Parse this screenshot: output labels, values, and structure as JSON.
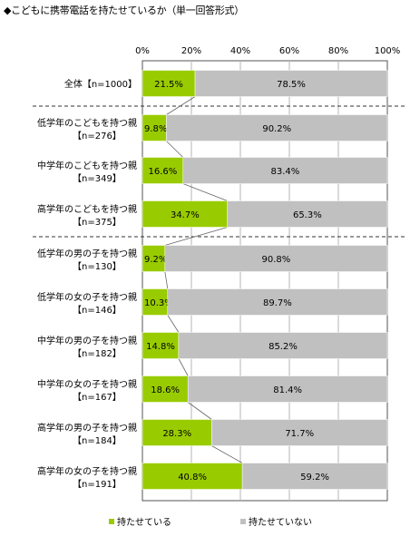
{
  "title": "◆こどもに携帯電話を持たせているか（単一回答形式）",
  "chart_data": {
    "type": "bar",
    "stacked": true,
    "orientation": "horizontal",
    "title": "◆こどもに携帯電話を持たせているか（単一回答形式）",
    "xlim": [
      0,
      100
    ],
    "xticks": [
      "0%",
      "20%",
      "40%",
      "60%",
      "80%",
      "100%"
    ],
    "categories": [
      {
        "label": "全体【n=1000】",
        "lines": [
          "全体【n=1000】"
        ]
      },
      {
        "label": "低学年のこどもを持つ親【n=276】",
        "lines": [
          "低学年のこどもを持つ親",
          "【n=276】"
        ]
      },
      {
        "label": "中学年のこどもを持つ親【n=349】",
        "lines": [
          "中学年のこどもを持つ親",
          "【n=349】"
        ]
      },
      {
        "label": "高学年のこどもを持つ親【n=375】",
        "lines": [
          "高学年のこどもを持つ親",
          "【n=375】"
        ]
      },
      {
        "label": "低学年の男の子を持つ親【n=130】",
        "lines": [
          "低学年の男の子を持つ親",
          "【n=130】"
        ]
      },
      {
        "label": "低学年の女の子を持つ親【n=146】",
        "lines": [
          "低学年の女の子を持つ親",
          "【n=146】"
        ]
      },
      {
        "label": "中学年の男の子を持つ親【n=182】",
        "lines": [
          "中学年の男の子を持つ親",
          "【n=182】"
        ]
      },
      {
        "label": "中学年の女の子を持つ親【n=167】",
        "lines": [
          "中学年の女の子を持つ親",
          "【n=167】"
        ]
      },
      {
        "label": "高学年の男の子を持つ親【n=184】",
        "lines": [
          "高学年の男の子を持つ親",
          "【n=184】"
        ]
      },
      {
        "label": "高学年の女の子を持つ親【n=191】",
        "lines": [
          "高学年の女の子を持つ親",
          "【n=191】"
        ]
      }
    ],
    "series": [
      {
        "name": "持たせている",
        "color": "#99cc00",
        "values": [
          21.5,
          9.8,
          16.6,
          34.7,
          9.2,
          10.3,
          14.8,
          18.6,
          28.3,
          40.8
        ],
        "labels": [
          "21.5%",
          "9.8%",
          "16.6%",
          "34.7%",
          "9.2%",
          "10.3%",
          "14.8%",
          "18.6%",
          "28.3%",
          "40.8%"
        ]
      },
      {
        "name": "持たせていない",
        "color": "#c0c0c0",
        "values": [
          78.5,
          90.2,
          83.4,
          65.3,
          90.8,
          89.7,
          85.2,
          81.4,
          71.7,
          59.2
        ],
        "labels": [
          "78.5%",
          "90.2%",
          "83.4%",
          "65.3%",
          "90.8%",
          "89.7%",
          "85.2%",
          "81.4%",
          "71.7%",
          "59.2%"
        ]
      }
    ],
    "connector_lines": true,
    "group_separators_after": [
      0,
      3
    ],
    "legend_position": "bottom"
  }
}
